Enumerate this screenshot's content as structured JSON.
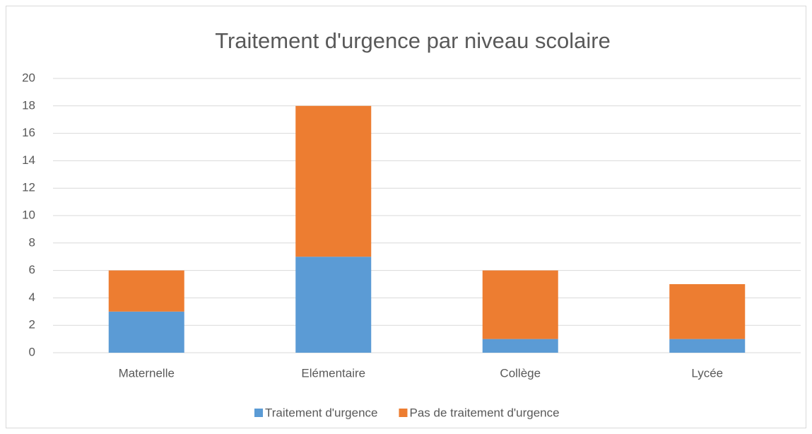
{
  "chart_data": {
    "type": "stacked_bar",
    "title": "Traitement d'urgence par niveau scolaire",
    "categories": [
      "Maternelle",
      "Elémentaire",
      "Collège",
      "Lycée"
    ],
    "series": [
      {
        "name": "Traitement d'urgence",
        "color": "#5b9bd5",
        "values": [
          3,
          7,
          1,
          1
        ]
      },
      {
        "name": "Pas de traitement d'urgence",
        "color": "#ed7d31",
        "values": [
          3,
          11,
          5,
          4
        ]
      }
    ],
    "ylim": [
      0,
      20
    ],
    "yticks": [
      0,
      2,
      4,
      6,
      8,
      10,
      12,
      14,
      16,
      18,
      20
    ],
    "grid": true,
    "legend": "bottom"
  }
}
